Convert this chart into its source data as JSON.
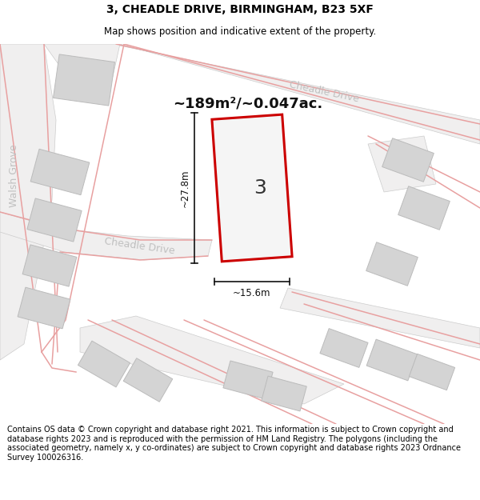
{
  "title": "3, CHEADLE DRIVE, BIRMINGHAM, B23 5XF",
  "subtitle": "Map shows position and indicative extent of the property.",
  "footer": "Contains OS data © Crown copyright and database right 2021. This information is subject to Crown copyright and database rights 2023 and is reproduced with the permission of HM Land Registry. The polygons (including the associated geometry, namely x, y co-ordinates) are subject to Crown copyright and database rights 2023 Ordnance Survey 100026316.",
  "area_text": "~189m²/~0.047ac.",
  "width_label": "~15.6m",
  "height_label": "~27.8m",
  "plot_number": "3",
  "map_bg": "#e8e8e8",
  "road_surface": "#f0efef",
  "building_fill": "#d4d4d4",
  "building_edge": "#bbbbbb",
  "plot_fill": "#f5f5f5",
  "plot_edge": "#cc0000",
  "road_line": "#e8a0a0",
  "dim_color": "#111111",
  "street_color": "#c0c0c0",
  "title_fs": 10,
  "subtitle_fs": 8.5,
  "footer_fs": 7.0,
  "area_fs": 13,
  "plot_label_fs": 18,
  "street_fs": 9
}
